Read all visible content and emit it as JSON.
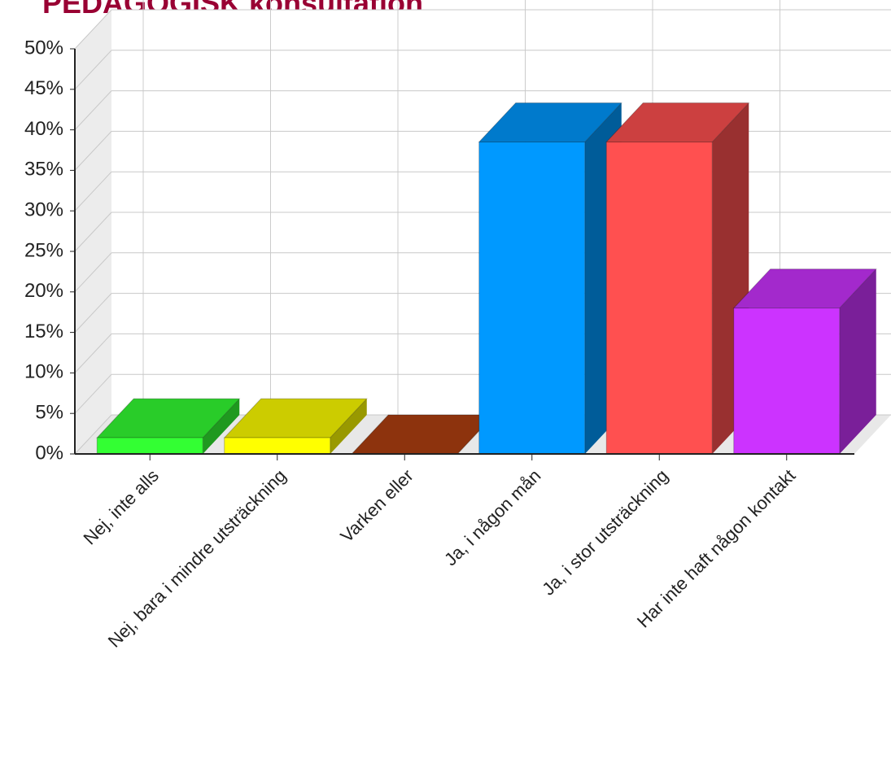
{
  "chart_data": {
    "type": "bar3d",
    "title": "PEDAGOGISK konsultation",
    "categories": [
      "Nej, inte alls",
      "Nej, bara i mindre utsträckning",
      "Varken eller",
      "Ja, i någon mån",
      "Ja, i stor utsträckning",
      "Har inte haft någon kontakt"
    ],
    "values": [
      2,
      2,
      0,
      38.5,
      38.5,
      18
    ],
    "colors": [
      "#33ff33",
      "#ffff00",
      "#b04010",
      "#0099ff",
      "#ff5050",
      "#cc33ff"
    ],
    "ylim": [
      0,
      50
    ],
    "yticks": [
      {
        "value": 0,
        "label": "0%"
      },
      {
        "value": 5,
        "label": "5%"
      },
      {
        "value": 10,
        "label": "10%"
      },
      {
        "value": 15,
        "label": "15%"
      },
      {
        "value": 20,
        "label": "20%"
      },
      {
        "value": 25,
        "label": "25%"
      },
      {
        "value": 30,
        "label": "30%"
      },
      {
        "value": 35,
        "label": "35%"
      },
      {
        "value": 40,
        "label": "40%"
      },
      {
        "value": 45,
        "label": "45%"
      },
      {
        "value": 50,
        "label": "50%"
      }
    ],
    "grid": true
  }
}
